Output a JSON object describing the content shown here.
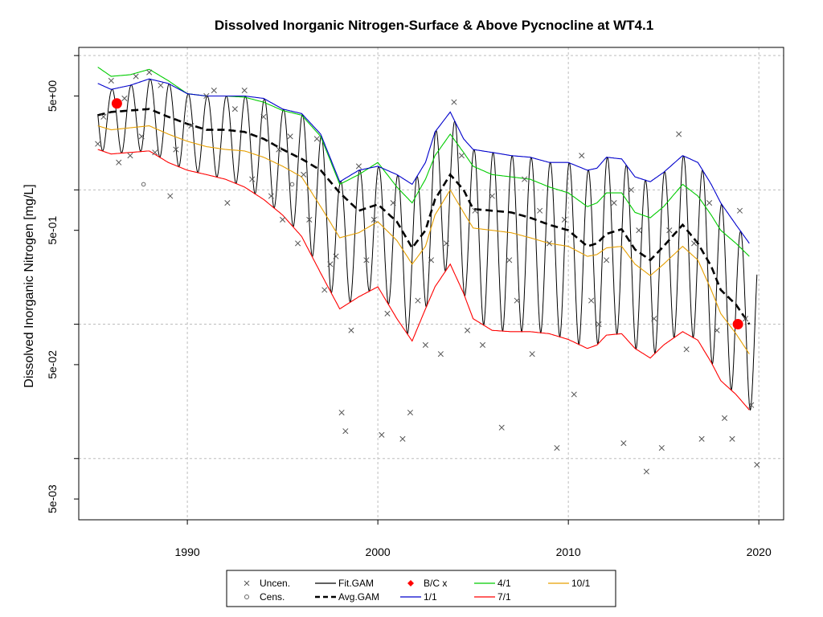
{
  "chart_data": {
    "type": "line",
    "title": "Dissolved Inorganic Nitrogen-Surface & Above Pycnocline at WT4.1",
    "xlabel": "",
    "ylabel": "Dissolved Inorganic Nitrogen [mg/L]",
    "y_scale": "log",
    "xlim": [
      1984.3,
      2021.3
    ],
    "ylim": [
      0.0035,
      11.5
    ],
    "x_ticks": [
      1990,
      2000,
      2010,
      2020
    ],
    "x_tick_labels": [
      "1990",
      "2000",
      "2010",
      "2020"
    ],
    "y_ticks": [
      5,
      0.5,
      0.05,
      0.005
    ],
    "y_tick_labels": [
      "5e+00",
      "5e-01",
      "5e-02",
      "5e-03"
    ],
    "y_gridlines": [
      10,
      1,
      0.1,
      0.01
    ],
    "grid": true,
    "legend_position": "bottom",
    "legend": [
      {
        "label": "Uncen.",
        "symbol": "x-marker"
      },
      {
        "label": "Fit.GAM",
        "symbol": "solid-line",
        "color": "#000000"
      },
      {
        "label": "B/C x",
        "symbol": "red-diamond",
        "color": "#FF0000"
      },
      {
        "label": "4/1",
        "symbol": "solid-line",
        "color": "#00CC00"
      },
      {
        "label": "10/1",
        "symbol": "solid-line",
        "color": "#E69F00"
      },
      {
        "label": "Cens.",
        "symbol": "circle-marker"
      },
      {
        "label": "Avg.GAM",
        "symbol": "dashed-line",
        "color": "#000000"
      },
      {
        "label": "1/1",
        "symbol": "solid-line",
        "color": "#0000CC"
      },
      {
        "label": "7/1",
        "symbol": "solid-line",
        "color": "#FF0000"
      }
    ],
    "series": [
      {
        "name": "Avg.GAM",
        "color": "#000000",
        "x": [
          1985.3,
          1986,
          1987,
          1988,
          1989,
          1990,
          1991,
          1992,
          1993,
          1994,
          1995,
          1996,
          1997,
          1998,
          1999,
          2000,
          2001,
          2001.8,
          2002.5,
          2003,
          2003.8,
          2004.5,
          2005,
          2006,
          2007,
          2008,
          2009,
          2010,
          2011,
          2011.5,
          2012,
          2012.8,
          2013.5,
          2014.3,
          2015,
          2016,
          2016.8,
          2017.5,
          2018,
          2018.8,
          2019.5
        ],
        "y": [
          3.6,
          3.8,
          3.9,
          4.0,
          3.5,
          3.1,
          2.8,
          2.8,
          2.7,
          2.4,
          2.0,
          1.7,
          1.4,
          0.95,
          0.7,
          0.78,
          0.58,
          0.37,
          0.5,
          0.85,
          1.3,
          1.0,
          0.72,
          0.7,
          0.68,
          0.62,
          0.55,
          0.5,
          0.38,
          0.4,
          0.47,
          0.51,
          0.36,
          0.3,
          0.38,
          0.55,
          0.4,
          0.27,
          0.18,
          0.14,
          0.1
        ]
      },
      {
        "name": "1/1",
        "color": "#0000CC",
        "x": [
          1985.3,
          1986,
          1987,
          1988,
          1989,
          1990,
          1991,
          1992,
          1993,
          1994,
          1995,
          1996,
          1997,
          1998,
          1999,
          2000,
          2001,
          2001.8,
          2002.5,
          2003,
          2003.8,
          2004.5,
          2005,
          2006,
          2007,
          2008,
          2009,
          2010,
          2011,
          2011.5,
          2012,
          2012.8,
          2013.5,
          2014.3,
          2015,
          2016,
          2016.8,
          2017.5,
          2018,
          2018.8,
          2019.5
        ],
        "y": [
          6.2,
          5.6,
          6.0,
          6.7,
          6.2,
          5.2,
          5.0,
          5.0,
          5.0,
          4.8,
          4.0,
          3.7,
          2.6,
          1.15,
          1.4,
          1.5,
          1.3,
          1.1,
          1.6,
          2.7,
          3.8,
          2.4,
          2.0,
          1.9,
          1.8,
          1.75,
          1.6,
          1.6,
          1.4,
          1.45,
          1.75,
          1.7,
          1.25,
          1.15,
          1.35,
          1.8,
          1.6,
          1.1,
          0.8,
          0.55,
          0.4
        ]
      },
      {
        "name": "4/1",
        "color": "#00CC00",
        "x": [
          1985.3,
          1986,
          1987,
          1988,
          1989,
          1990,
          1991,
          1992,
          1993,
          1994,
          1995,
          1996,
          1997,
          1998,
          1999,
          2000,
          2001,
          2001.8,
          2002.5,
          2003,
          2003.8,
          2004.5,
          2005,
          2006,
          2007,
          2008,
          2009,
          2010,
          2011,
          2011.5,
          2012,
          2012.8,
          2013.5,
          2014.3,
          2015,
          2016,
          2016.8,
          2017.5,
          2018,
          2018.8,
          2019.5
        ],
        "y": [
          8.2,
          7.0,
          7.2,
          7.9,
          6.5,
          5.2,
          5.0,
          5.0,
          4.9,
          4.5,
          3.9,
          3.6,
          2.5,
          1.1,
          1.3,
          1.6,
          1.05,
          0.8,
          1.2,
          1.8,
          2.6,
          1.9,
          1.5,
          1.3,
          1.25,
          1.2,
          1.05,
          0.95,
          0.75,
          0.8,
          0.95,
          0.95,
          0.68,
          0.62,
          0.75,
          1.1,
          0.9,
          0.65,
          0.5,
          0.4,
          0.32
        ]
      },
      {
        "name": "10/1",
        "color": "#E69F00",
        "x": [
          1985.3,
          1986,
          1987,
          1988,
          1989,
          1990,
          1991,
          1992,
          1993,
          1994,
          1995,
          1996,
          1997,
          1998,
          1999,
          2000,
          2001,
          2001.8,
          2002.5,
          2003,
          2003.8,
          2004.5,
          2005,
          2006,
          2007,
          2008,
          2009,
          2010,
          2011,
          2011.5,
          2012,
          2012.8,
          2013.5,
          2014.3,
          2015,
          2016,
          2016.8,
          2017.5,
          2018,
          2018.8,
          2019.5
        ],
        "y": [
          3.0,
          2.8,
          2.9,
          3.0,
          2.6,
          2.3,
          2.1,
          2.0,
          1.95,
          1.75,
          1.5,
          1.25,
          0.75,
          0.44,
          0.48,
          0.58,
          0.42,
          0.28,
          0.38,
          0.65,
          1.0,
          0.68,
          0.52,
          0.5,
          0.48,
          0.44,
          0.4,
          0.38,
          0.32,
          0.33,
          0.37,
          0.38,
          0.28,
          0.23,
          0.28,
          0.38,
          0.3,
          0.18,
          0.12,
          0.085,
          0.06
        ]
      },
      {
        "name": "7/1",
        "color": "#FF0000",
        "x": [
          1985.3,
          1986,
          1987,
          1988,
          1989,
          1990,
          1991,
          1992,
          1993,
          1994,
          1995,
          1996,
          1997,
          1998,
          1999,
          2000,
          2001,
          2001.8,
          2002.5,
          2003,
          2003.8,
          2004.5,
          2005,
          2006,
          2007,
          2008,
          2009,
          2010,
          2011,
          2011.5,
          2012,
          2012.8,
          2013.5,
          2014.3,
          2015,
          2016,
          2016.8,
          2017.5,
          2018,
          2018.8,
          2019.5
        ],
        "y": [
          2.0,
          1.85,
          1.9,
          1.95,
          1.6,
          1.4,
          1.3,
          1.2,
          1.05,
          0.85,
          0.65,
          0.45,
          0.24,
          0.13,
          0.16,
          0.19,
          0.11,
          0.075,
          0.13,
          0.19,
          0.28,
          0.17,
          0.11,
          0.09,
          0.088,
          0.088,
          0.085,
          0.077,
          0.066,
          0.07,
          0.083,
          0.085,
          0.066,
          0.056,
          0.07,
          0.088,
          0.076,
          0.052,
          0.038,
          0.03,
          0.023
        ]
      },
      {
        "name": "Fit.GAM",
        "color": "#000000",
        "derived_from": "7/1 to 1/1 seasonal oscillation",
        "x": [
          1985.3,
          2019.9
        ],
        "y": [
          0.023,
          6.2
        ]
      }
    ],
    "uncensored_points": {
      "x": [
        1985.3,
        1985.6,
        1986.0,
        1986.4,
        1986.7,
        1987.0,
        1987.3,
        1987.6,
        1988.0,
        1988.3,
        1988.6,
        1989.1,
        1989.4,
        1990.2,
        1991.0,
        1991.4,
        1992.1,
        1992.5,
        1993.0,
        1993.4,
        1994.0,
        1994.4,
        1994.8,
        1995.0,
        1995.4,
        1995.8,
        1996.1,
        1996.4,
        1996.8,
        1997.2,
        1997.5,
        1997.8,
        1998.1,
        1998.3,
        1998.6,
        1999.0,
        1999.4,
        1999.8,
        2000.2,
        2000.5,
        2000.8,
        2001.3,
        2001.7,
        2002.1,
        2002.5,
        2002.8,
        2003.3,
        2003.6,
        2004.0,
        2004.4,
        2004.7,
        2005.1,
        2005.5,
        2006.0,
        2006.5,
        2006.9,
        2007.3,
        2007.7,
        2008.1,
        2008.5,
        2009.0,
        2009.4,
        2009.8,
        2010.3,
        2010.7,
        2011.2,
        2011.6,
        2012.0,
        2012.4,
        2012.9,
        2013.3,
        2013.7,
        2014.1,
        2014.5,
        2014.9,
        2015.3,
        2015.8,
        2016.2,
        2016.6,
        2017.0,
        2017.4,
        2017.8,
        2018.2,
        2018.6,
        2019.0,
        2019.3,
        2019.6,
        2019.9
      ],
      "y": [
        2.2,
        3.5,
        6.5,
        1.6,
        4.8,
        1.8,
        7.0,
        2.5,
        7.5,
        1.9,
        6.0,
        0.9,
        2.0,
        3.0,
        5.0,
        5.5,
        0.8,
        4.0,
        5.5,
        1.2,
        3.5,
        0.9,
        2.0,
        0.6,
        2.5,
        0.4,
        1.3,
        0.6,
        2.4,
        0.18,
        0.28,
        0.32,
        0.022,
        0.016,
        0.09,
        1.5,
        0.3,
        0.6,
        0.015,
        0.12,
        0.8,
        0.014,
        0.022,
        0.15,
        0.07,
        0.3,
        0.06,
        0.4,
        4.5,
        1.8,
        0.09,
        0.7,
        0.07,
        0.9,
        0.017,
        0.3,
        0.15,
        1.2,
        0.06,
        0.7,
        0.4,
        0.012,
        0.6,
        0.03,
        1.8,
        0.15,
        0.1,
        0.3,
        0.8,
        0.013,
        1.0,
        0.5,
        0.008,
        0.11,
        0.012,
        0.5,
        2.6,
        0.065,
        0.4,
        0.014,
        0.8,
        0.09,
        0.02,
        0.014,
        0.7,
        0.11,
        0.025,
        0.009
      ]
    },
    "censored_points": {
      "x": [
        1987.7,
        1995.5
      ],
      "y": [
        1.1,
        1.1
      ]
    },
    "bc_points": {
      "x": [
        1986.3,
        2018.9
      ],
      "y": [
        4.4,
        0.1
      ]
    }
  }
}
